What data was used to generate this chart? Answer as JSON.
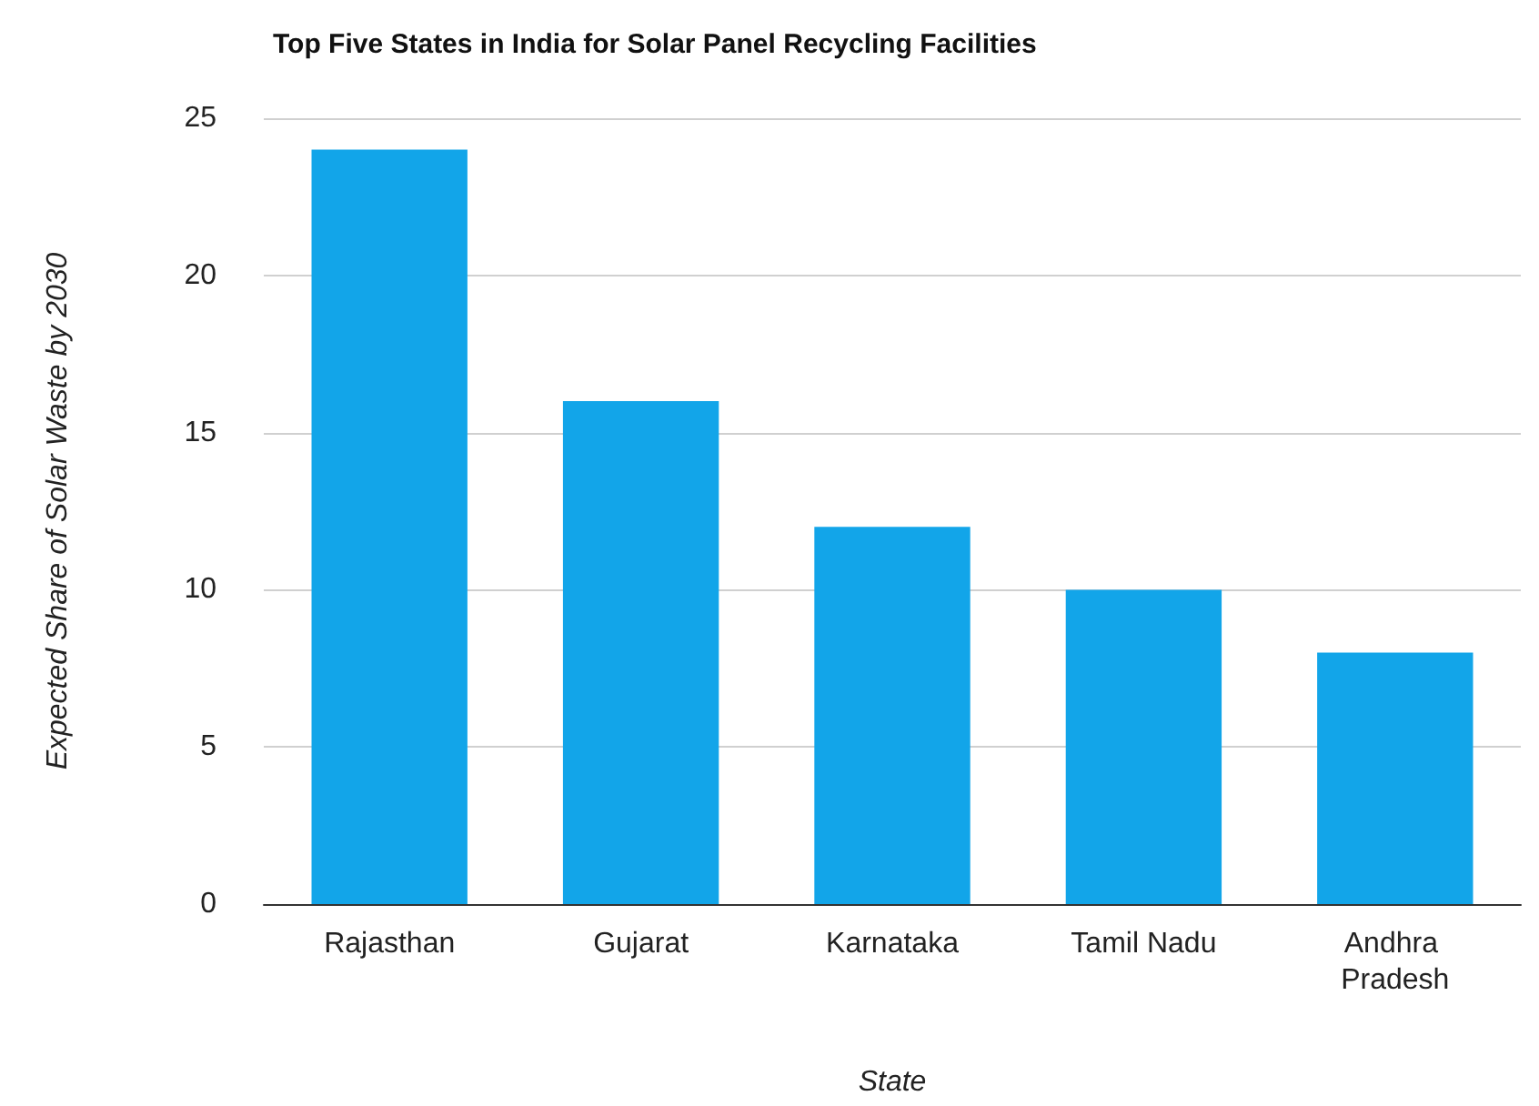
{
  "chart_data": {
    "type": "bar",
    "title": "Top Five States in India for Solar Panel Recycling Facilities",
    "xlabel": "State",
    "ylabel": "Expected Share of Solar Waste by 2030",
    "categories": [
      "Rajasthan",
      "Gujarat",
      "Karnataka",
      "Tamil Nadu",
      "Andhra Pradesh"
    ],
    "values": [
      24,
      16,
      12,
      10,
      8
    ],
    "color": "#12a5e9",
    "ylim": [
      0,
      25
    ],
    "yticks": [
      0,
      5,
      10,
      15,
      20,
      25
    ],
    "grid": "y"
  }
}
